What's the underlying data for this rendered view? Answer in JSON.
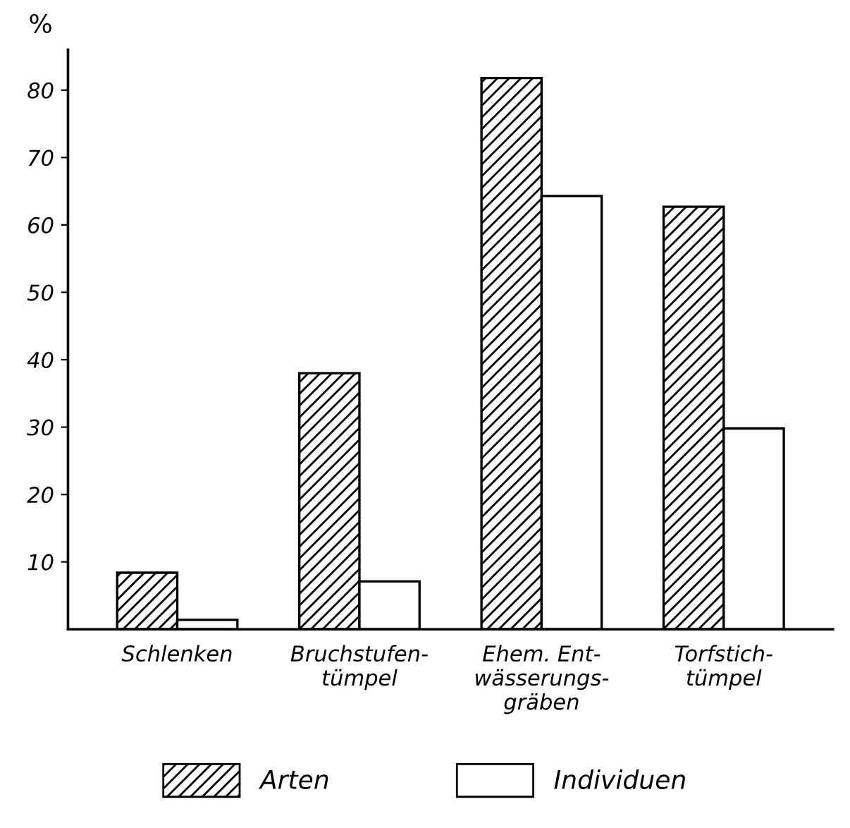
{
  "chart_data": {
    "type": "bar",
    "ylabel": "%",
    "categories": [
      "Schlenken",
      "Bruchstufen-\ntümpel",
      "Ehem. Ent-\nwässerungs-\ngräben",
      "Torfstich-\ntümpel"
    ],
    "series": [
      {
        "name": "Arten",
        "color": "#000000",
        "values": [
          8.4,
          38,
          81.8,
          62.7
        ]
      },
      {
        "name": "Individuen",
        "color": "#ffffff",
        "values": [
          1.4,
          7.1,
          64.3,
          29.8
        ]
      }
    ],
    "ylim": [
      0,
      86
    ],
    "yticks": [
      10,
      20,
      30,
      40,
      50,
      60,
      70,
      80
    ],
    "grid": false,
    "legend": "bottom"
  }
}
